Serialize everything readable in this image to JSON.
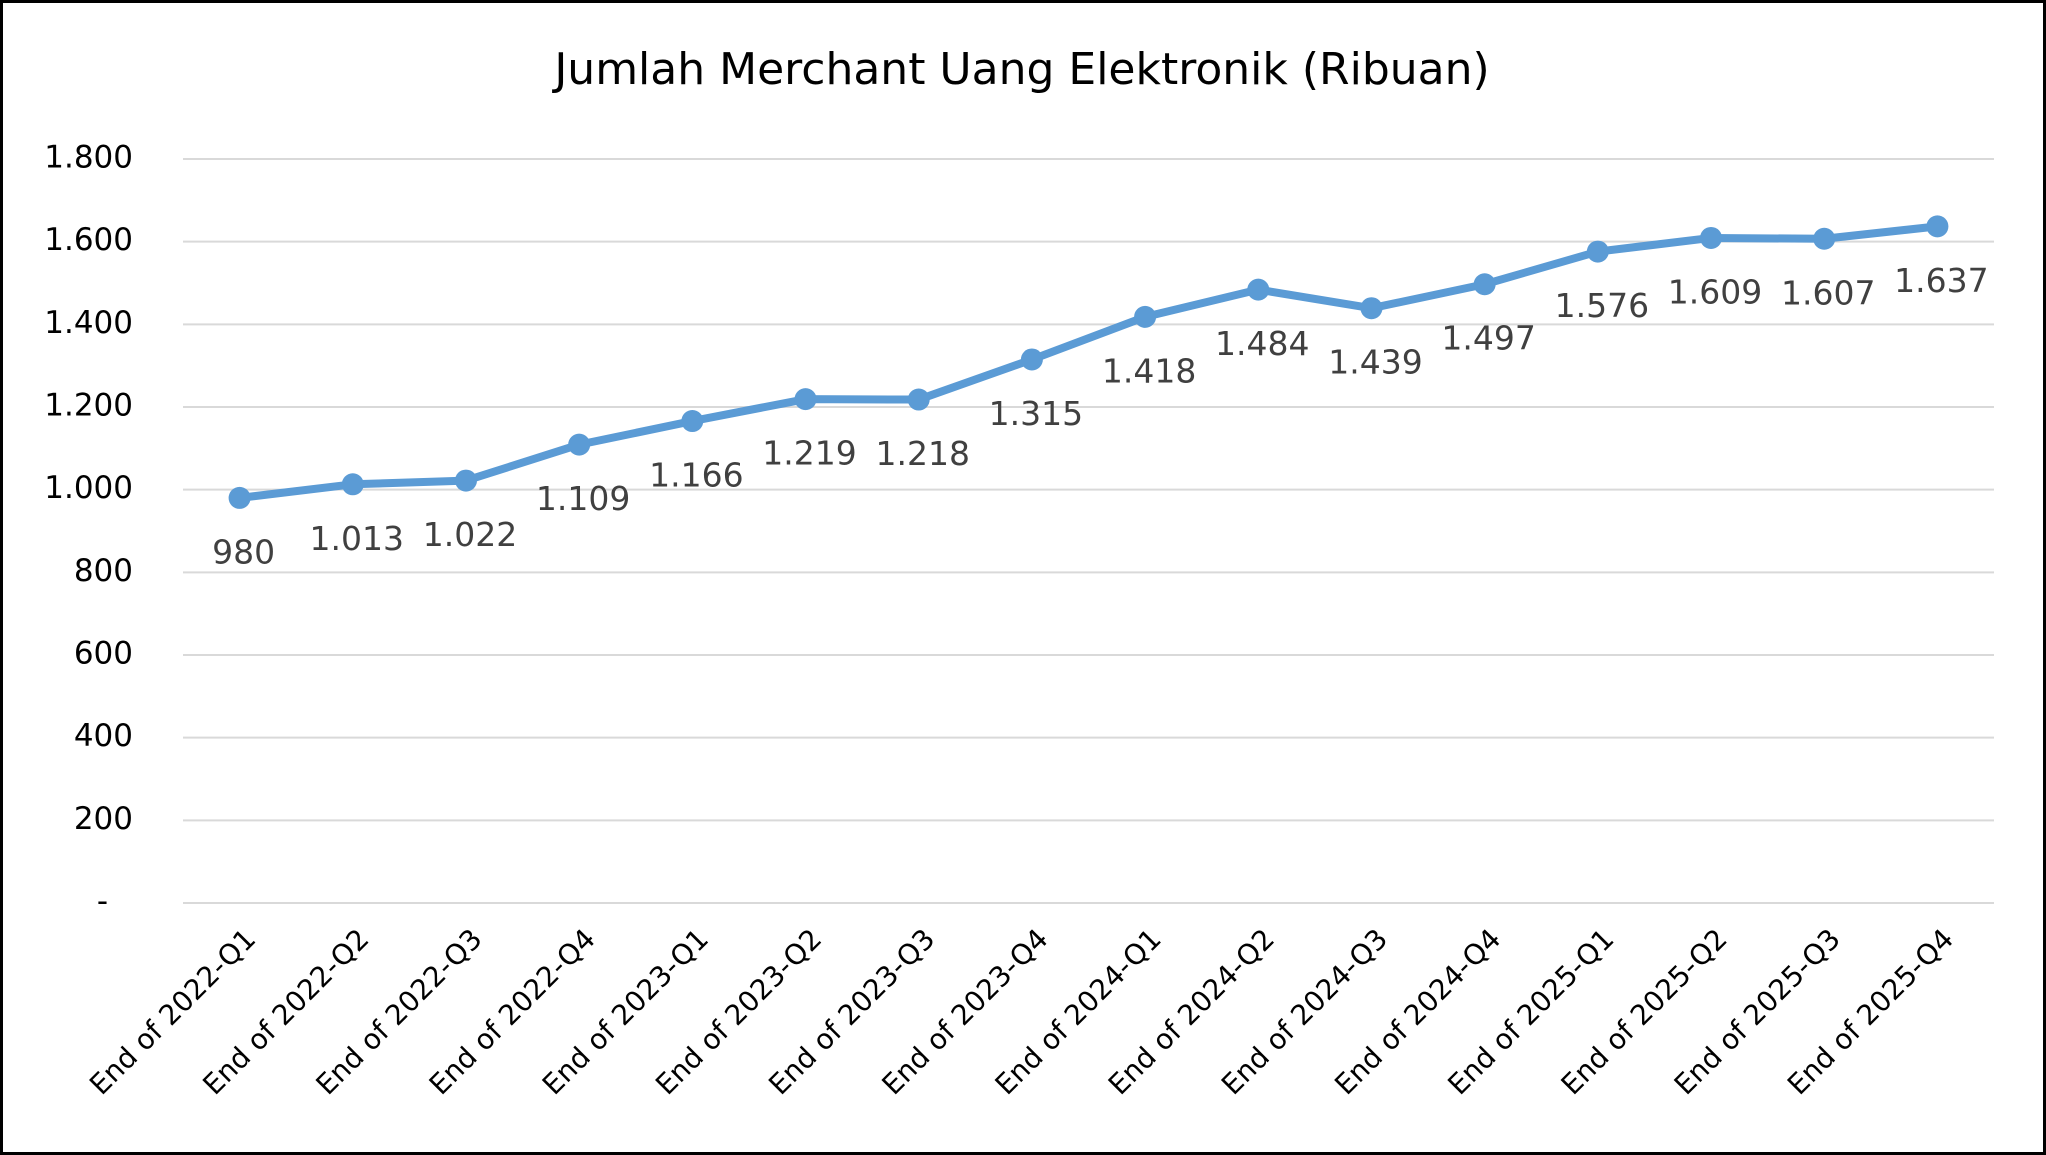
{
  "chart_data": {
    "type": "line",
    "title": "Jumlah Merchant Uang Elektronik (Ribuan)",
    "categories": [
      "End of 2022-Q1",
      "End of 2022-Q2",
      "End of 2022-Q3",
      "End of 2022-Q4",
      "End of 2023-Q1",
      "End of 2023-Q2",
      "End of 2023-Q3",
      "End of 2023-Q4",
      "End of 2024-Q1",
      "End of 2024-Q2",
      "End of 2024-Q3",
      "End of 2024-Q4",
      "End of 2025-Q1",
      "End of 2025-Q2",
      "End of 2025-Q3",
      "End of 2025-Q4"
    ],
    "values": [
      980,
      1013,
      1022,
      1109,
      1166,
      1219,
      1218,
      1315,
      1418,
      1484,
      1439,
      1497,
      1576,
      1609,
      1607,
      1637
    ],
    "value_labels": [
      "980",
      "1.013",
      "1.022",
      "1.109",
      "1.166",
      "1.219",
      "1.218",
      "1.315",
      "1.418",
      "1.484",
      "1.439",
      "1.497",
      "1.576",
      "1.609",
      "1.607",
      "1.637"
    ],
    "color": "#5b9bd5",
    "ylim": [
      0,
      1800
    ],
    "yticks": [
      {
        "value": 0,
        "label": "-"
      },
      200,
      400,
      600,
      800,
      {
        "value": 1000,
        "label": "1.000"
      },
      {
        "value": 1200,
        "label": "1.200"
      },
      {
        "value": 1400,
        "label": "1.400"
      },
      {
        "value": 1600,
        "label": "1.600"
      },
      {
        "value": 1800,
        "label": "1.800"
      }
    ],
    "grid": true
  }
}
